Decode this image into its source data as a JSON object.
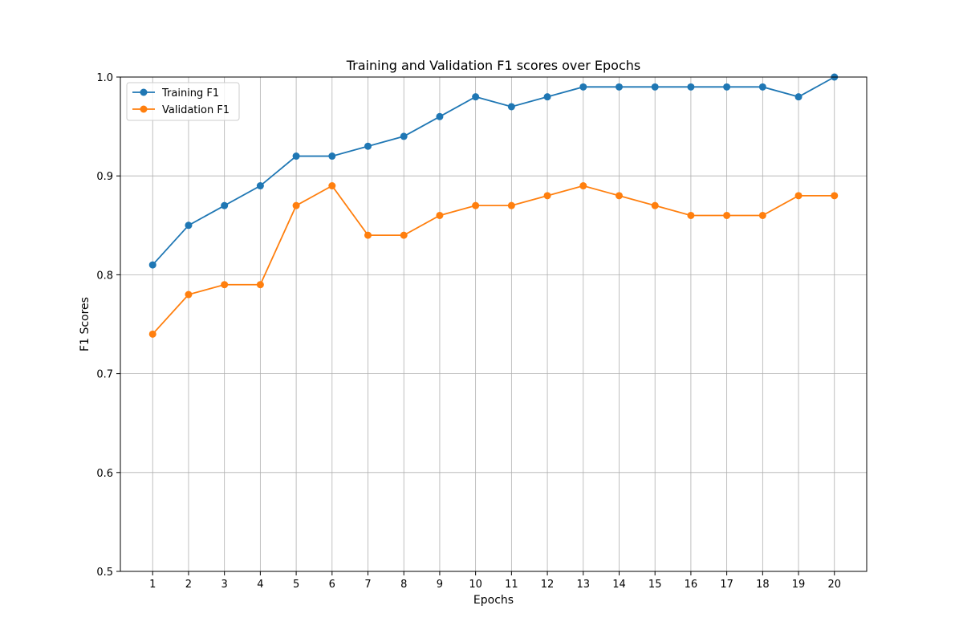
{
  "chart_data": {
    "type": "line",
    "title": "Training and Validation F1 scores over Epochs",
    "xlabel": "Epochs",
    "ylabel": "F1 Scores",
    "x": [
      1,
      2,
      3,
      4,
      5,
      6,
      7,
      8,
      9,
      10,
      11,
      12,
      13,
      14,
      15,
      16,
      17,
      18,
      19,
      20
    ],
    "xlim": [
      0.1,
      20.9
    ],
    "ylim": [
      0.5,
      1.0
    ],
    "yticks": [
      0.5,
      0.6,
      0.7,
      0.8,
      0.9,
      1.0
    ],
    "ytick_labels": [
      "0.5",
      "0.6",
      "0.7",
      "0.8",
      "0.9",
      "1.0"
    ],
    "grid": true,
    "legend_position": "top-left",
    "series": [
      {
        "name": "Training F1",
        "color": "#1f77b4",
        "marker": "circle",
        "values": [
          0.81,
          0.85,
          0.87,
          0.89,
          0.92,
          0.92,
          0.93,
          0.94,
          0.96,
          0.98,
          0.97,
          0.98,
          0.99,
          0.99,
          0.99,
          0.99,
          0.99,
          0.99,
          0.98,
          1.0
        ]
      },
      {
        "name": "Validation F1",
        "color": "#ff7f0e",
        "marker": "circle",
        "values": [
          0.74,
          0.78,
          0.79,
          0.79,
          0.87,
          0.89,
          0.84,
          0.84,
          0.86,
          0.87,
          0.87,
          0.88,
          0.89,
          0.88,
          0.87,
          0.86,
          0.86,
          0.86,
          0.88,
          0.88
        ]
      }
    ]
  }
}
